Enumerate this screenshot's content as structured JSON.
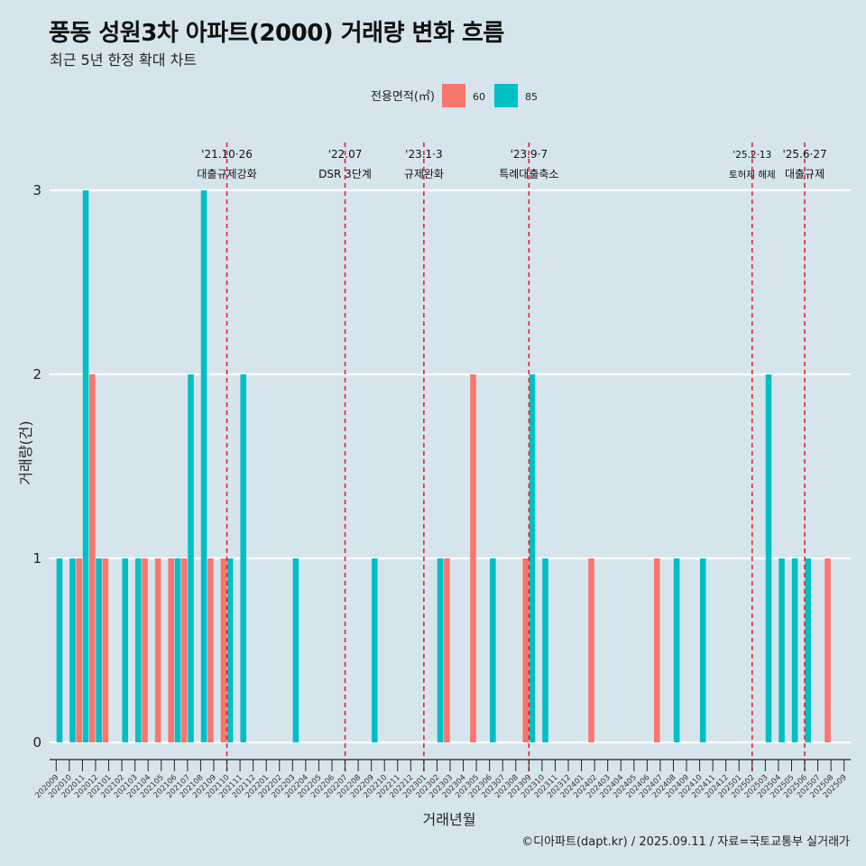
{
  "header": {
    "title": "풍동 성원3차 아파트(2000) 거래량 변화 흐름",
    "subtitle": "최근 5년 한정 확대 차트"
  },
  "footer": {
    "source": "©디아파트(dapt.kr) / 2025.09.11 / 자료=국토교통부 실거래가"
  },
  "colors": {
    "background": "#d6e4ec",
    "series_60": "#f8766d",
    "series_85": "#00bfc4",
    "event_line": "#e41a1c",
    "grid": "#ffffff"
  },
  "chart_data": {
    "type": "bar",
    "title": "풍동 성원3차 아파트(2000) 거래량 변화 흐름",
    "subtitle": "최근 5년 한정 확대 차트",
    "xlabel": "거래년월",
    "ylabel": "거래량(건)",
    "ylim": [
      0,
      3
    ],
    "yticks": [
      0,
      1,
      2,
      3
    ],
    "grid": true,
    "legend": {
      "title": "전용면적(㎡)",
      "position": "top"
    },
    "categories": [
      "202009",
      "202010",
      "202011",
      "202012",
      "202101",
      "202102",
      "202103",
      "202104",
      "202105",
      "202106",
      "202107",
      "202108",
      "202109",
      "202110",
      "202111",
      "202112",
      "202201",
      "202202",
      "202203",
      "202204",
      "202205",
      "202206",
      "202207",
      "202208",
      "202209",
      "202210",
      "202211",
      "202212",
      "202301",
      "202302",
      "202303",
      "202304",
      "202305",
      "202306",
      "202307",
      "202308",
      "202309",
      "202310",
      "202311",
      "202312",
      "202401",
      "202402",
      "202403",
      "202404",
      "202405",
      "202406",
      "202407",
      "202408",
      "202409",
      "202410",
      "202411",
      "202412",
      "202501",
      "202502",
      "202503",
      "202504",
      "202505",
      "202506",
      "202507",
      "202508",
      "202509"
    ],
    "series": [
      {
        "name": "60",
        "values": [
          0,
          0,
          1,
          2,
          1,
          0,
          0,
          1,
          1,
          1,
          1,
          0,
          1,
          1,
          0,
          0,
          0,
          0,
          0,
          0,
          0,
          0,
          0,
          0,
          0,
          0,
          0,
          0,
          0,
          0,
          1,
          0,
          2,
          0,
          0,
          0,
          1,
          0,
          0,
          0,
          0,
          1,
          0,
          0,
          0,
          0,
          1,
          0,
          0,
          0,
          0,
          0,
          0,
          0,
          0,
          0,
          0,
          0,
          0,
          1,
          0
        ]
      },
      {
        "name": "85",
        "values": [
          1,
          1,
          3,
          1,
          0,
          1,
          1,
          0,
          0,
          1,
          2,
          3,
          0,
          1,
          2,
          0,
          0,
          0,
          1,
          0,
          0,
          0,
          0,
          0,
          1,
          0,
          0,
          0,
          0,
          1,
          0,
          0,
          0,
          1,
          0,
          0,
          2,
          1,
          0,
          0,
          0,
          0,
          0,
          0,
          0,
          0,
          0,
          1,
          0,
          1,
          0,
          0,
          0,
          0,
          2,
          1,
          1,
          1,
          0,
          0,
          0
        ]
      }
    ],
    "events": [
      {
        "date": "'21.10·26",
        "label": "대출규제강화",
        "category": "202110"
      },
      {
        "date": "'22.07",
        "label": "DSR 3단계",
        "category": "202207"
      },
      {
        "date": "'23.1·3",
        "label": "규제완화",
        "category": "202301"
      },
      {
        "date": "'23.9·7",
        "label": "특례대출축소",
        "category": "202309"
      },
      {
        "date": "'25.2·13",
        "label": "토허제 해제",
        "category": "202502"
      },
      {
        "date": "'25.6·27",
        "label": "대출규제",
        "category": "202506"
      }
    ]
  }
}
